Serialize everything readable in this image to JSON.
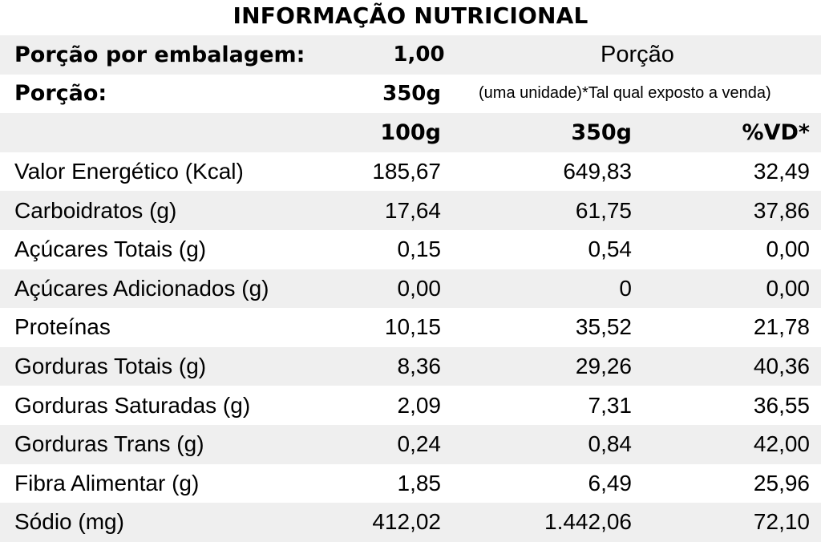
{
  "title": "INFORMAÇÃO NUTRICIONAL",
  "header": {
    "servings_label": "Porção por embalagem:",
    "servings_value": "1,00",
    "portion_heading": "Porção",
    "portion_label": "Porção:",
    "portion_value": "350g",
    "portion_note": "(uma unidade)*Tal qual exposto a venda)"
  },
  "columns": [
    "100g",
    "350g",
    "%VD*"
  ],
  "rows": [
    {
      "label": "Valor Energético (Kcal)",
      "per100": "185,67",
      "per350": "649,83",
      "vd": "32,49"
    },
    {
      "label": "Carboidratos (g)",
      "per100": "17,64",
      "per350": "61,75",
      "vd": "37,86"
    },
    {
      "label": "Açúcares Totais (g)",
      "per100": "0,15",
      "per350": "0,54",
      "vd": "0,00"
    },
    {
      "label": "Açúcares Adicionados (g)",
      "per100": "0,00",
      "per350": "0",
      "vd": "0,00"
    },
    {
      "label": "Proteínas",
      "per100": "10,15",
      "per350": "35,52",
      "vd": "21,78"
    },
    {
      "label": "Gorduras Totais (g)",
      "per100": "8,36",
      "per350": "29,26",
      "vd": "40,36"
    },
    {
      "label": "Gorduras Saturadas (g)",
      "per100": "2,09",
      "per350": "7,31",
      "vd": "36,55"
    },
    {
      "label": "Gorduras Trans (g)",
      "per100": "0,24",
      "per350": "0,84",
      "vd": "42,00"
    },
    {
      "label": "Fibra Alimentar (g)",
      "per100": "1,85",
      "per350": "6,49",
      "vd": "25,96"
    },
    {
      "label": "Sódio (mg)",
      "per100": "412,02",
      "per350": "1.442,06",
      "vd": "72,10"
    }
  ]
}
